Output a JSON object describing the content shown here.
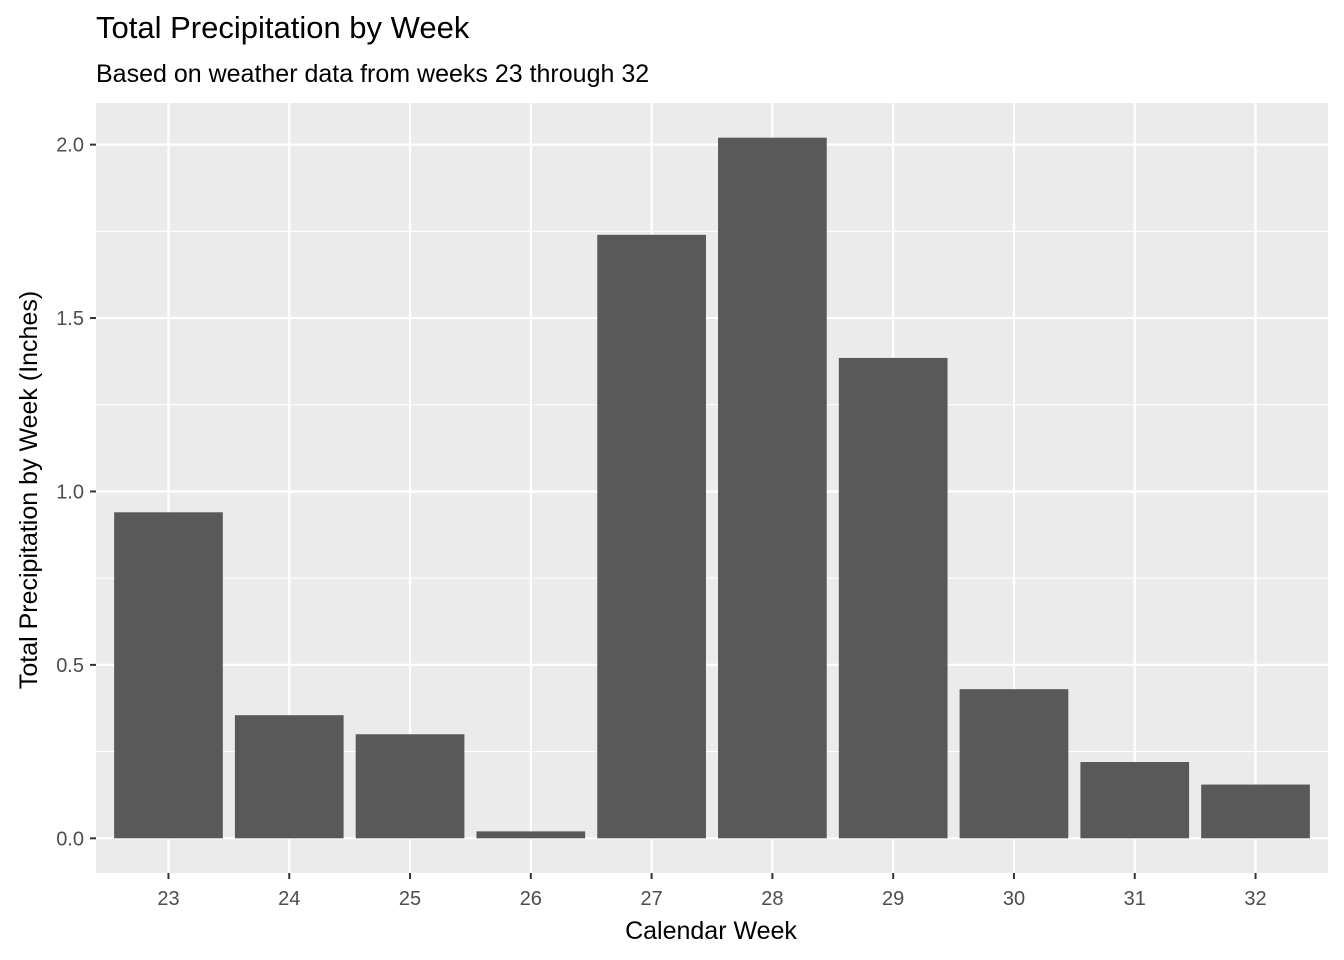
{
  "chart_data": {
    "type": "bar",
    "title": "Total Precipitation by Week",
    "subtitle": "Based on weather data from weeks 23 through 32",
    "xlabel": "Calendar Week",
    "ylabel": "Total Precipitation by Week (Inches)",
    "categories": [
      "23",
      "24",
      "25",
      "26",
      "27",
      "28",
      "29",
      "30",
      "31",
      "32"
    ],
    "values": [
      0.94,
      0.355,
      0.3,
      0.02,
      1.74,
      2.02,
      1.385,
      0.43,
      0.22,
      0.155
    ],
    "ylim": [
      -0.1,
      2.12
    ],
    "yticks": [
      0.0,
      0.5,
      1.0,
      1.5,
      2.0
    ],
    "ytick_labels": [
      "0.0",
      "0.5",
      "1.0",
      "1.5",
      "2.0"
    ],
    "grid": true,
    "colors": {
      "panel_background": "#ebebeb",
      "bar_fill": "#595959",
      "grid_line": "#ffffff",
      "tick_text": "#4d4d4d",
      "tick_mark": "#333333"
    }
  }
}
